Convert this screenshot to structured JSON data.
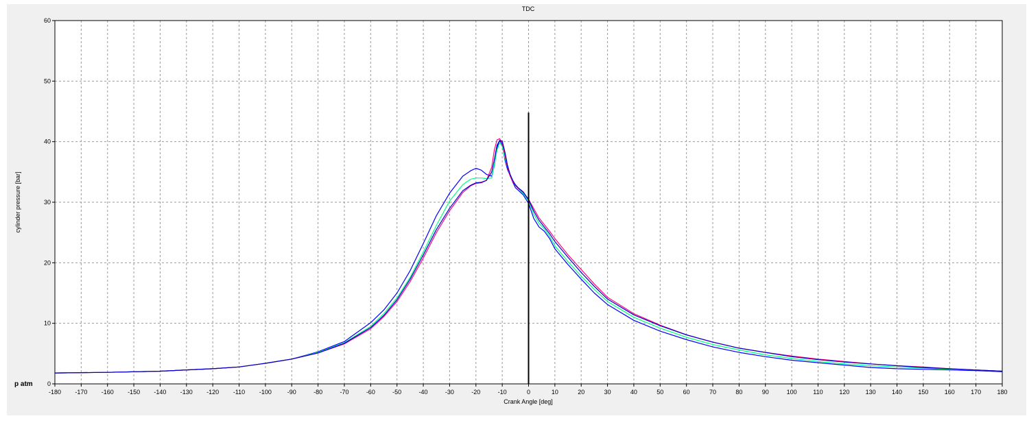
{
  "chart_data": {
    "type": "line",
    "title": "TDC",
    "xlabel": "Crank Angle [deg]",
    "ylabel": "cylinder pressure [bar]",
    "y_baseline_label": "p atm",
    "xlim": [
      -180,
      180
    ],
    "ylim": [
      0,
      60
    ],
    "xticks": [
      -180,
      -170,
      -160,
      -150,
      -140,
      -130,
      -120,
      -110,
      -100,
      -90,
      -80,
      -70,
      -60,
      -50,
      -40,
      -30,
      -20,
      -10,
      0,
      10,
      20,
      30,
      40,
      50,
      60,
      70,
      80,
      90,
      100,
      110,
      120,
      130,
      140,
      150,
      160,
      170,
      180
    ],
    "yticks": [
      0,
      10,
      20,
      30,
      40,
      50,
      60
    ],
    "grid": true,
    "vertical_marker": {
      "x": 0,
      "y_top": 44.8,
      "color": "#000000"
    },
    "series": [
      {
        "color": "#0000ff",
        "x": [
          -180,
          -160,
          -140,
          -120,
          -110,
          -100,
          -90,
          -80,
          -70,
          -60,
          -55,
          -50,
          -45,
          -40,
          -35,
          -30,
          -25,
          -22,
          -20,
          -18,
          -16,
          -14,
          -13,
          -12,
          -11,
          -10,
          -9,
          -8,
          -7,
          -6,
          -5,
          -4,
          -2,
          0,
          2,
          4,
          6,
          8,
          10,
          15,
          20,
          25,
          30,
          40,
          50,
          60,
          70,
          80,
          90,
          100,
          110,
          120,
          130,
          140,
          150,
          160,
          170,
          180
        ],
        "y": [
          1.8,
          1.9,
          2.1,
          2.5,
          2.8,
          3.4,
          4.1,
          5.3,
          7.0,
          10.1,
          12.2,
          15.0,
          18.7,
          23.2,
          27.8,
          31.5,
          34.3,
          35.2,
          35.6,
          35.3,
          34.6,
          34.3,
          36.0,
          39.0,
          40.2,
          39.5,
          37.0,
          35.4,
          34.4,
          33.3,
          32.4,
          32.0,
          31.2,
          29.8,
          27.3,
          25.9,
          25.2,
          24.0,
          22.3,
          19.7,
          17.3,
          15.0,
          13.1,
          10.5,
          8.7,
          7.3,
          6.1,
          5.2,
          4.5,
          3.9,
          3.5,
          3.1,
          2.7,
          2.5,
          2.4,
          2.3,
          2.2,
          2.0
        ]
      },
      {
        "color": "#00ff80",
        "x": [
          -180,
          -160,
          -140,
          -120,
          -110,
          -100,
          -90,
          -80,
          -70,
          -60,
          -55,
          -50,
          -45,
          -40,
          -35,
          -30,
          -25,
          -22,
          -20,
          -18,
          -16,
          -14,
          -13,
          -12,
          -11,
          -10,
          -9,
          -8,
          -7,
          -6,
          -5,
          -4,
          -2,
          0,
          2,
          4,
          6,
          8,
          10,
          15,
          20,
          25,
          30,
          40,
          50,
          60,
          70,
          80,
          90,
          100,
          110,
          120,
          130,
          140,
          150,
          160,
          170,
          180
        ],
        "y": [
          1.8,
          1.9,
          2.1,
          2.5,
          2.8,
          3.4,
          4.1,
          5.2,
          6.8,
          9.5,
          11.6,
          14.2,
          17.6,
          21.8,
          26.2,
          30.2,
          32.9,
          33.8,
          34.0,
          34.0,
          33.9,
          34.0,
          36.2,
          38.6,
          39.8,
          39.2,
          37.3,
          35.8,
          34.6,
          33.6,
          32.7,
          32.3,
          31.4,
          30.2,
          28.0,
          26.5,
          25.6,
          24.4,
          22.8,
          20.2,
          17.8,
          15.6,
          13.6,
          11.0,
          9.2,
          7.7,
          6.5,
          5.6,
          4.8,
          4.2,
          3.7,
          3.3,
          3.0,
          2.8,
          2.6,
          2.4,
          2.3,
          2.1
        ]
      },
      {
        "color": "#ff0080",
        "x": [
          -180,
          -160,
          -140,
          -120,
          -110,
          -100,
          -90,
          -80,
          -70,
          -60,
          -55,
          -50,
          -45,
          -40,
          -35,
          -30,
          -25,
          -22,
          -20,
          -18,
          -16,
          -14,
          -13,
          -12,
          -11,
          -10,
          -9,
          -8,
          -7,
          -6,
          -5,
          -4,
          -2,
          0,
          2,
          4,
          6,
          8,
          10,
          15,
          20,
          25,
          30,
          40,
          50,
          60,
          70,
          80,
          90,
          100,
          110,
          120,
          130,
          140,
          150,
          160,
          170,
          180
        ],
        "y": [
          1.8,
          1.9,
          2.1,
          2.5,
          2.8,
          3.4,
          4.1,
          5.1,
          6.6,
          9.1,
          11.1,
          13.6,
          16.9,
          20.8,
          25.0,
          28.6,
          31.6,
          32.7,
          33.1,
          33.2,
          33.6,
          35.8,
          38.6,
          40.3,
          40.5,
          39.8,
          37.8,
          35.8,
          34.3,
          33.4,
          32.8,
          32.3,
          31.6,
          30.5,
          28.9,
          27.4,
          26.3,
          25.2,
          24.0,
          21.3,
          18.9,
          16.5,
          14.3,
          11.6,
          9.7,
          8.1,
          6.9,
          5.9,
          5.2,
          4.6,
          4.1,
          3.7,
          3.3,
          3.0,
          2.8,
          2.5,
          2.3,
          2.1
        ]
      },
      {
        "color": "#0000cc",
        "x": [
          -180,
          -160,
          -140,
          -120,
          -110,
          -100,
          -90,
          -80,
          -70,
          -60,
          -55,
          -50,
          -45,
          -40,
          -35,
          -30,
          -25,
          -22,
          -20,
          -18,
          -16,
          -14,
          -13,
          -12,
          -11,
          -10,
          -9,
          -8,
          -7,
          -6,
          -5,
          -4,
          -2,
          0,
          2,
          4,
          6,
          8,
          10,
          15,
          20,
          25,
          30,
          40,
          50,
          60,
          70,
          80,
          90,
          100,
          110,
          120,
          130,
          140,
          150,
          160,
          170,
          180
        ],
        "y": [
          1.8,
          1.9,
          2.1,
          2.5,
          2.8,
          3.4,
          4.1,
          5.1,
          6.7,
          9.3,
          11.3,
          13.9,
          17.3,
          21.3,
          25.5,
          29.0,
          31.9,
          32.8,
          33.2,
          33.3,
          33.6,
          35.0,
          37.0,
          39.4,
          40.2,
          40.1,
          38.3,
          36.1,
          34.6,
          33.6,
          32.9,
          32.4,
          31.7,
          30.4,
          28.5,
          27.0,
          25.9,
          24.8,
          23.5,
          20.9,
          18.4,
          16.1,
          14.0,
          11.4,
          9.6,
          8.1,
          6.9,
          5.9,
          5.2,
          4.5,
          4.0,
          3.6,
          3.3,
          3.0,
          2.7,
          2.5,
          2.3,
          2.1
        ]
      }
    ]
  }
}
